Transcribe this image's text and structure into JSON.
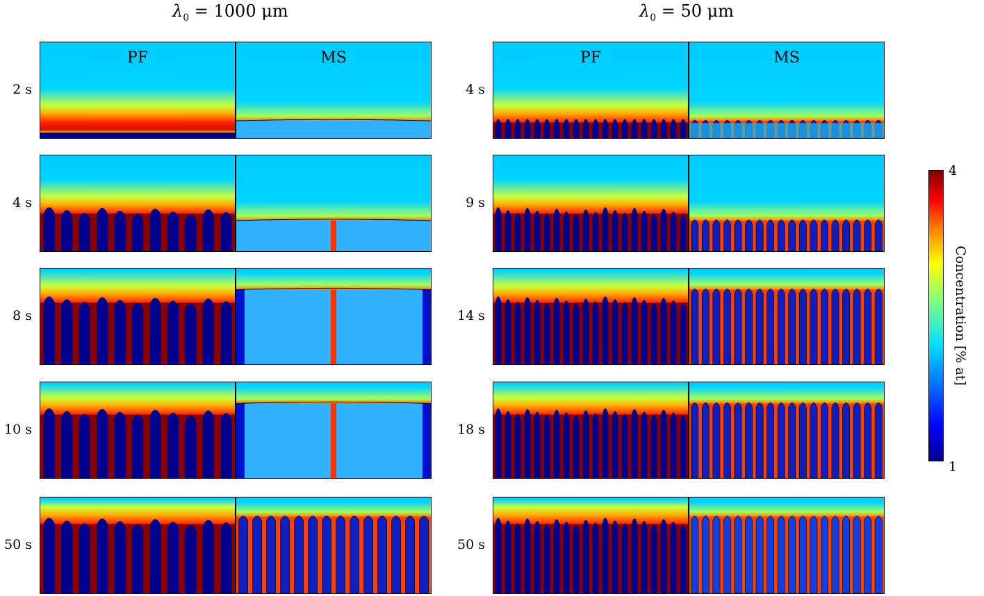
{
  "columns": [
    {
      "title_prefix": "λ",
      "title_sub": "0",
      "title_rest": " = 1000 μm",
      "times": [
        "2 s",
        "4 s",
        "8 s",
        "10 s",
        "50 s"
      ]
    },
    {
      "title_prefix": "λ",
      "title_sub": "0",
      "title_rest": " = 50 μm",
      "times": [
        "4 s",
        "9 s",
        "14 s",
        "18 s",
        "50 s"
      ]
    }
  ],
  "panel_labels": {
    "left": "PF",
    "right": "MS"
  },
  "colorbar": {
    "title": "Concentration [% at]",
    "max_label": "4",
    "min_label": "1",
    "colors": {
      "low": "#00008f",
      "mid": "#00d8ff",
      "high": "#800000",
      "liquid": "#00ccff"
    }
  }
}
